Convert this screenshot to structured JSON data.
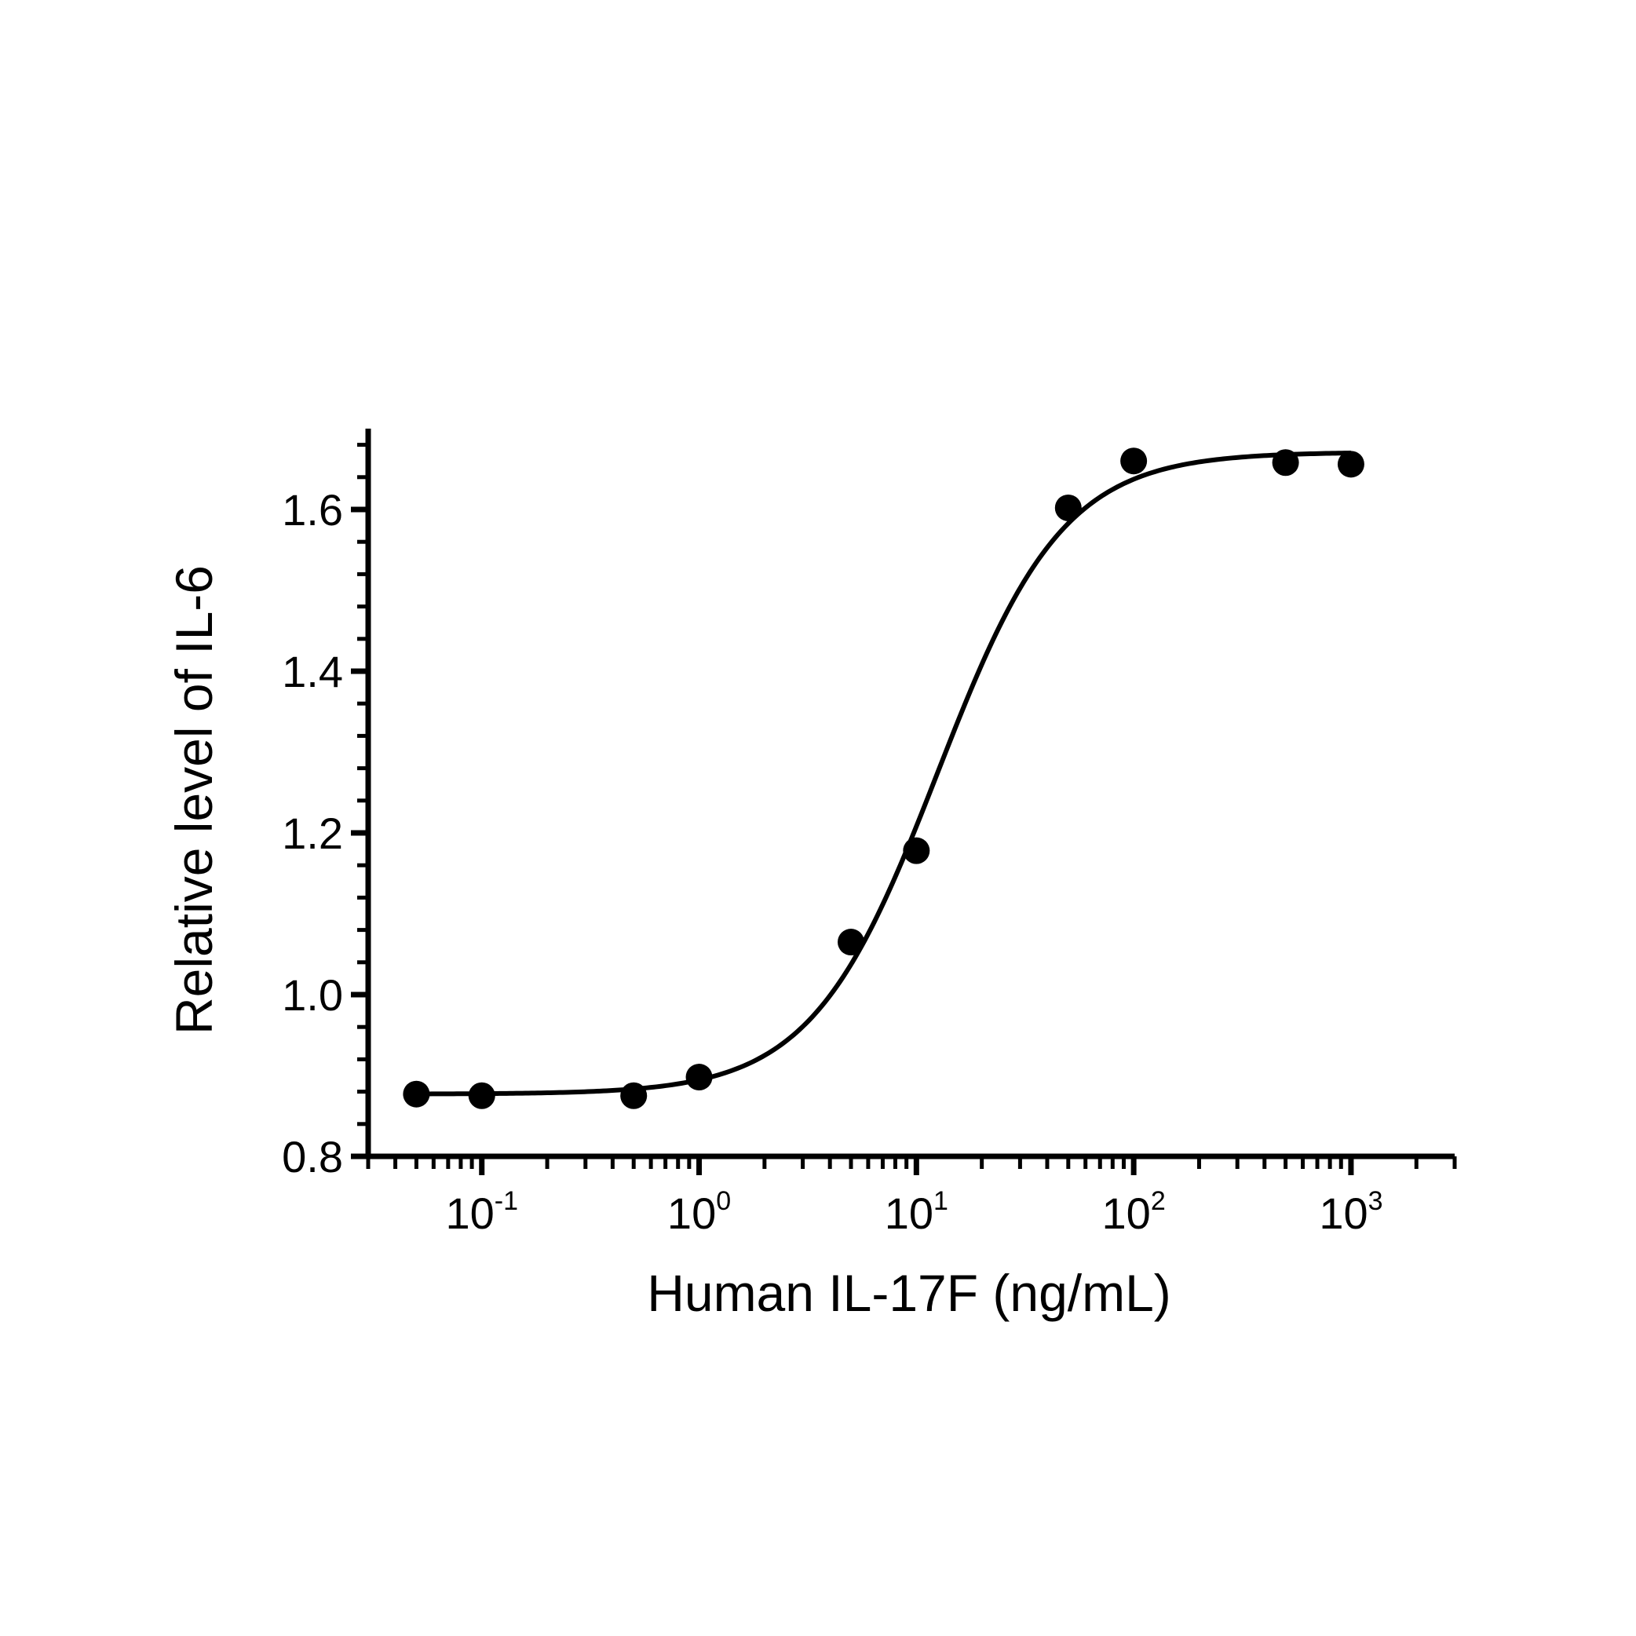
{
  "chart_data": {
    "type": "scatter",
    "xlabel": "Human IL-17F (ng/mL)",
    "ylabel": "Relative level of IL-6",
    "x_scale": "log",
    "xlim": [
      0.03,
      3000
    ],
    "ylim": [
      0.8,
      1.7
    ],
    "y_ticks": [
      {
        "value": 0.8,
        "label": "0.8"
      },
      {
        "value": 1.0,
        "label": "1.0"
      },
      {
        "value": 1.2,
        "label": "1.2"
      },
      {
        "value": 1.4,
        "label": "1.4"
      },
      {
        "value": 1.6,
        "label": "1.6"
      }
    ],
    "x_ticks": [
      {
        "value": 0.1,
        "base": "10",
        "exp": "-1"
      },
      {
        "value": 1,
        "base": "10",
        "exp": "0"
      },
      {
        "value": 10,
        "base": "10",
        "exp": "1"
      },
      {
        "value": 100,
        "base": "10",
        "exp": "2"
      },
      {
        "value": 1000,
        "base": "10",
        "exp": "3"
      }
    ],
    "points": [
      {
        "x": 0.05,
        "y": 0.877
      },
      {
        "x": 0.1,
        "y": 0.875
      },
      {
        "x": 0.5,
        "y": 0.875
      },
      {
        "x": 1,
        "y": 0.898
      },
      {
        "x": 5,
        "y": 1.065
      },
      {
        "x": 10,
        "y": 1.178
      },
      {
        "x": 50,
        "y": 1.602
      },
      {
        "x": 100,
        "y": 1.66
      },
      {
        "x": 500,
        "y": 1.658
      },
      {
        "x": 1000,
        "y": 1.656
      }
    ],
    "fit": {
      "model": "four-parameter logistic",
      "bottom": 0.877,
      "top": 1.671,
      "ec50": 12.5,
      "hill_slope": 1.5,
      "x_range": [
        0.05,
        1000
      ]
    },
    "grid": false,
    "legend": "none",
    "colors": {
      "marker": "#000000",
      "line": "#000000"
    }
  }
}
